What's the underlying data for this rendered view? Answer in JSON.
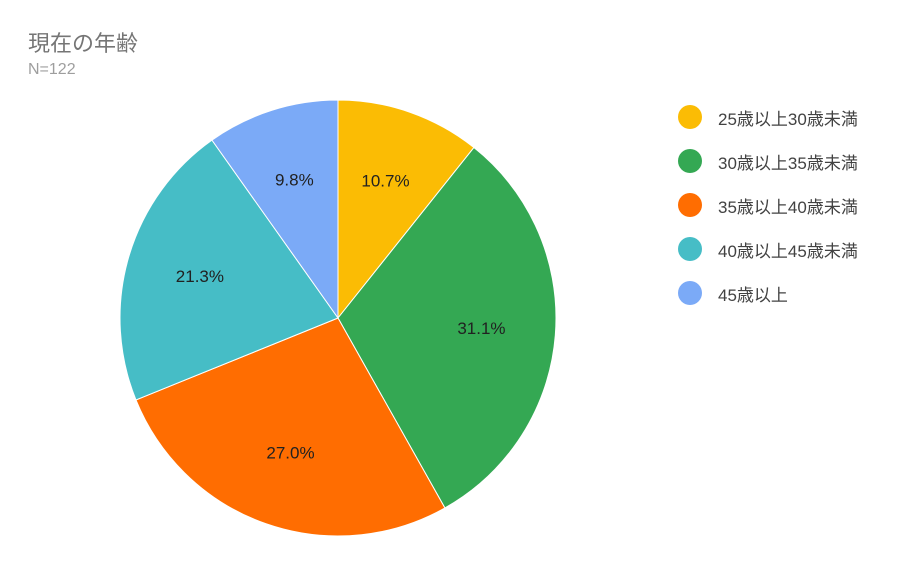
{
  "chart": {
    "title": "現在の年齢",
    "subtitle": "N=122"
  },
  "chart_data": {
    "type": "pie",
    "categories": [
      "25歳以上30歳未満",
      "30歳以上35歳未満",
      "35歳以上40歳未満",
      "40歳以上45歳未満",
      "45歳以上"
    ],
    "values": [
      10.7,
      31.1,
      27.0,
      21.3,
      9.8
    ],
    "labels": [
      "10.7%",
      "31.1%",
      "27.0%",
      "21.3%",
      "9.8%"
    ],
    "colors": [
      "#fbbc04",
      "#34a853",
      "#ff6d01",
      "#46bdc6",
      "#7baaf7"
    ],
    "legend_position": "right",
    "start": "top",
    "direction": "clockwise"
  }
}
